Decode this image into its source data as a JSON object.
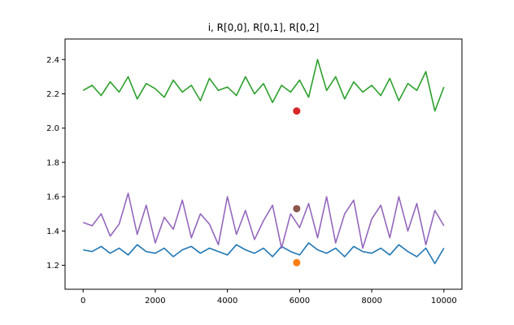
{
  "chart_data": {
    "type": "line",
    "title": "i, R[0,0], R[0,1], R[0,2]",
    "xlabel": "",
    "ylabel": "",
    "xlim": [
      -500,
      10500
    ],
    "ylim": [
      1.06,
      2.52
    ],
    "x_ticks": [
      0,
      2000,
      4000,
      6000,
      8000,
      10000
    ],
    "y_ticks": [
      1.2,
      1.4,
      1.6,
      1.8,
      2.0,
      2.2,
      2.4
    ],
    "grid": false,
    "legend": "none",
    "series": [
      {
        "color": "#1f77b4",
        "x": [
          0,
          250,
          500,
          750,
          1000,
          1250,
          1500,
          1750,
          2000,
          2250,
          2500,
          2750,
          3000,
          3250,
          3500,
          3750,
          4000,
          4250,
          4500,
          4750,
          5000,
          5250,
          5500,
          5750,
          6000,
          6250,
          6500,
          6750,
          7000,
          7250,
          7500,
          7750,
          8000,
          8250,
          8500,
          8750,
          9000,
          9250,
          9500,
          9750,
          10000
        ],
        "values": [
          1.29,
          1.28,
          1.31,
          1.27,
          1.3,
          1.26,
          1.32,
          1.28,
          1.27,
          1.3,
          1.25,
          1.29,
          1.31,
          1.27,
          1.3,
          1.28,
          1.26,
          1.32,
          1.29,
          1.27,
          1.3,
          1.25,
          1.31,
          1.28,
          1.26,
          1.33,
          1.29,
          1.27,
          1.3,
          1.25,
          1.31,
          1.28,
          1.27,
          1.3,
          1.26,
          1.32,
          1.28,
          1.25,
          1.3,
          1.21,
          1.3
        ]
      },
      {
        "color": "#2ca02c",
        "x": [
          0,
          250,
          500,
          750,
          1000,
          1250,
          1500,
          1750,
          2000,
          2250,
          2500,
          2750,
          3000,
          3250,
          3500,
          3750,
          4000,
          4250,
          4500,
          4750,
          5000,
          5250,
          5500,
          5750,
          6000,
          6250,
          6500,
          6750,
          7000,
          7250,
          7500,
          7750,
          8000,
          8250,
          8500,
          8750,
          9000,
          9250,
          9500,
          9750,
          10000
        ],
        "values": [
          2.22,
          2.25,
          2.19,
          2.27,
          2.21,
          2.3,
          2.17,
          2.26,
          2.23,
          2.18,
          2.28,
          2.21,
          2.25,
          2.16,
          2.29,
          2.22,
          2.24,
          2.19,
          2.3,
          2.2,
          2.26,
          2.15,
          2.25,
          2.21,
          2.28,
          2.18,
          2.4,
          2.22,
          2.3,
          2.17,
          2.27,
          2.21,
          2.25,
          2.19,
          2.29,
          2.16,
          2.26,
          2.22,
          2.33,
          2.1,
          2.24
        ]
      },
      {
        "color": "#9467bd",
        "x": [
          0,
          250,
          500,
          750,
          1000,
          1250,
          1500,
          1750,
          2000,
          2250,
          2500,
          2750,
          3000,
          3250,
          3500,
          3750,
          4000,
          4250,
          4500,
          4750,
          5000,
          5250,
          5500,
          5750,
          6000,
          6250,
          6500,
          6750,
          7000,
          7250,
          7500,
          7750,
          8000,
          8250,
          8500,
          8750,
          9000,
          9250,
          9500,
          9750,
          10000
        ],
        "values": [
          1.45,
          1.43,
          1.5,
          1.37,
          1.44,
          1.62,
          1.38,
          1.55,
          1.33,
          1.48,
          1.41,
          1.58,
          1.36,
          1.5,
          1.44,
          1.32,
          1.6,
          1.38,
          1.52,
          1.35,
          1.46,
          1.55,
          1.3,
          1.5,
          1.42,
          1.56,
          1.36,
          1.6,
          1.33,
          1.5,
          1.58,
          1.3,
          1.47,
          1.55,
          1.36,
          1.6,
          1.4,
          1.56,
          1.32,
          1.52,
          1.43
        ]
      },
      {
        "type": "scatter",
        "color": "#ff7f0e",
        "x": [
          5920
        ],
        "values": [
          1.215
        ]
      },
      {
        "type": "scatter",
        "color": "#d62728",
        "x": [
          5920
        ],
        "values": [
          2.1
        ]
      },
      {
        "type": "scatter",
        "color": "#8c564b",
        "x": [
          5920
        ],
        "values": [
          1.53
        ]
      }
    ]
  }
}
